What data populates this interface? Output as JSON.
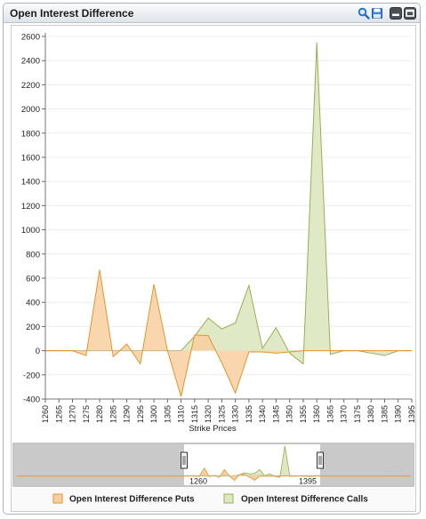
{
  "panel": {
    "title": "Open Interest Difference",
    "icons": [
      "search-icon",
      "save-icon",
      "minimize-icon",
      "maximize-icon"
    ]
  },
  "colors": {
    "puts_line": "#e3952a",
    "puts_fill": "#f8cfa0",
    "calls_line": "#9aae54",
    "calls_fill": "#dde7c0",
    "navigator_bg": "#c6c6c6"
  },
  "chart_data": {
    "type": "area",
    "xlabel": "Strike Prices",
    "ylabel": "",
    "ylim": [
      -400,
      2600
    ],
    "yticks": [
      -400,
      -200,
      0,
      200,
      400,
      600,
      800,
      1000,
      1200,
      1400,
      1600,
      1800,
      2000,
      2200,
      2400,
      2600
    ],
    "grid": true,
    "legend_position": "bottom",
    "x": [
      1260,
      1265,
      1270,
      1275,
      1280,
      1285,
      1290,
      1295,
      1300,
      1305,
      1310,
      1315,
      1320,
      1325,
      1330,
      1335,
      1340,
      1345,
      1350,
      1355,
      1360,
      1365,
      1370,
      1375,
      1380,
      1385,
      1390,
      1395
    ],
    "series": [
      {
        "name": "Open Interest Difference Puts",
        "values": [
          0,
          0,
          0,
          -40,
          670,
          -50,
          55,
          -110,
          550,
          0,
          -380,
          130,
          125,
          -100,
          -350,
          -10,
          -10,
          -20,
          -10,
          0,
          0,
          0,
          0,
          0,
          0,
          0,
          0,
          0
        ]
      },
      {
        "name": "Open Interest Difference Calls",
        "values": [
          0,
          0,
          0,
          0,
          0,
          0,
          0,
          0,
          0,
          0,
          0,
          120,
          270,
          180,
          230,
          540,
          20,
          190,
          -20,
          -110,
          2550,
          -30,
          0,
          0,
          -20,
          -40,
          0,
          0
        ]
      }
    ],
    "navigator": {
      "range_start_label": "1260",
      "range_end_label": "1395"
    }
  }
}
